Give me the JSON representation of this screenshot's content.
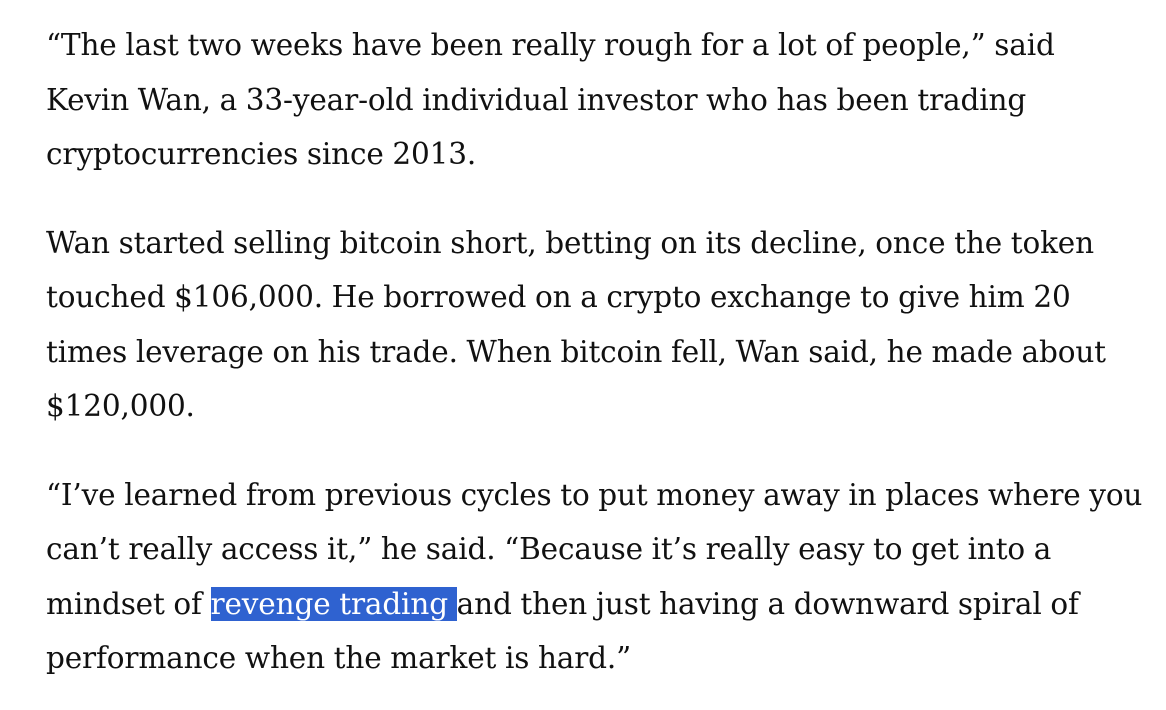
{
  "article": {
    "paragraphs": [
      {
        "text": "“The last two weeks have been really rough for a lot of people,” said Kevin Wan, a 33-year-old individual investor who has been trading cryptocurrencies since 2013."
      },
      {
        "text": "Wan started selling bitcoin short, betting on its decline, once the token touched $106,000. He borrowed on a crypto exchange to give him 20 times leverage on his trade. When bitcoin fell, Wan said, he made about $120,000."
      },
      {
        "before": "“I’ve learned from previous cycles to put money away in places where you can’t really access it,” he said. “Because it’s really easy to get into a mindset of ",
        "selected": "revenge trading ",
        "after": "and then just having a downward spiral of performance when the market is hard.”"
      }
    ]
  },
  "colors": {
    "text": "#111111",
    "selection_background": "#2f62d0",
    "selection_text": "#ffffff",
    "page_background": "#ffffff"
  }
}
